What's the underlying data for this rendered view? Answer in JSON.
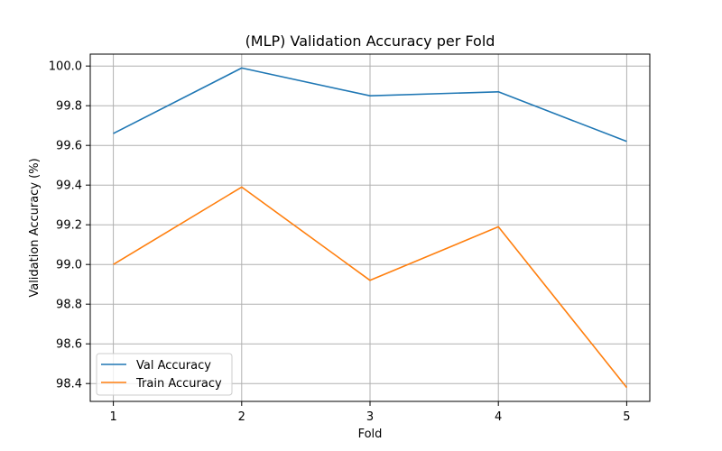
{
  "chart_data": {
    "type": "line",
    "title": "(MLP) Validation Accuracy per Fold",
    "xlabel": "Fold",
    "ylabel": "Validation Accuracy (%)",
    "x": [
      1,
      2,
      3,
      4,
      5
    ],
    "xticks": [
      "1",
      "2",
      "3",
      "4",
      "5"
    ],
    "yticks": [
      "98.4",
      "98.6",
      "98.8",
      "99.0",
      "99.2",
      "99.4",
      "99.6",
      "99.8",
      "100.0"
    ],
    "xlim": [
      0.82,
      5.18
    ],
    "ylim": [
      98.31,
      100.06
    ],
    "grid": true,
    "legend_position": "lower-left",
    "series": [
      {
        "name": "Val Accuracy",
        "color": "#1f77b4",
        "values": [
          99.66,
          99.99,
          99.85,
          99.87,
          99.62
        ]
      },
      {
        "name": "Train Accuracy",
        "color": "#ff7f0e",
        "values": [
          99.0,
          99.39,
          98.92,
          99.19,
          98.38
        ]
      }
    ]
  }
}
